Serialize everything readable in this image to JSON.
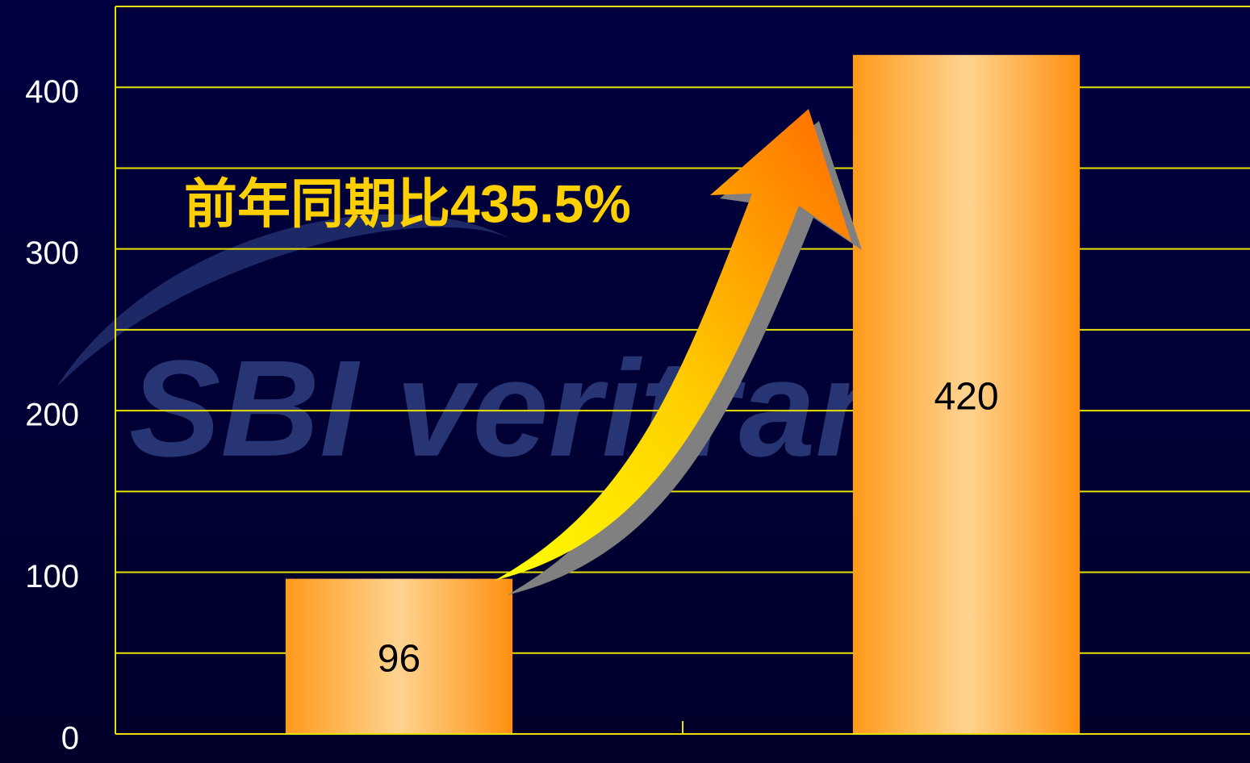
{
  "chart_data": {
    "type": "bar",
    "categories": [
      null,
      null
    ],
    "values": [
      96,
      420
    ],
    "ylim": [
      0,
      450
    ],
    "yticks": [
      0,
      100,
      200,
      300,
      400
    ],
    "minor_yticks": [
      50,
      150,
      250,
      350
    ],
    "grid": true,
    "grid_color": "#e8e000",
    "color": "#ff9a1a",
    "annotation": "前年同期比435.5%",
    "watermark": "SBI veritrans"
  }
}
